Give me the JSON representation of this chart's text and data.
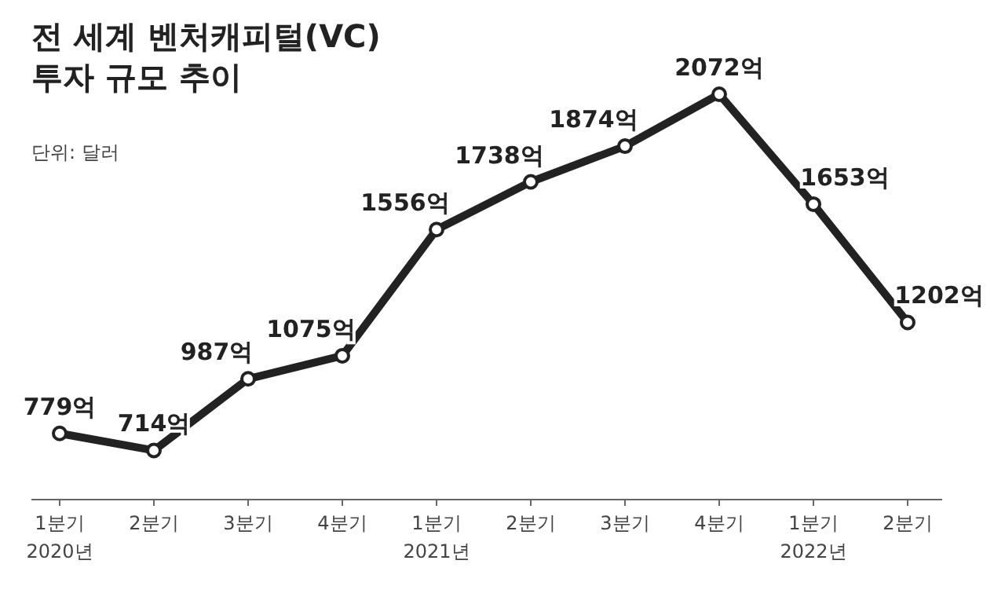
{
  "chart_data": {
    "type": "line",
    "title": "전 세계 벤처캐피털(VC)\n투자 규모 추이",
    "subtitle": "단위: 달러",
    "categories": [
      "1분기\n2020년",
      "2분기",
      "3분기",
      "4분기",
      "1분기\n2021년",
      "2분기",
      "3분기",
      "4분기",
      "1분기\n2022년",
      "2분기"
    ],
    "series": [
      {
        "color": "#222222",
        "values": [
          779,
          714,
          987,
          1075,
          1556,
          1738,
          1874,
          2072,
          1653,
          1202
        ],
        "value_labels": [
          "779억",
          "714억",
          "987억",
          "1075억",
          "1556억",
          "1738억",
          "1874억",
          "2072억",
          "1653억",
          "1202억"
        ]
      }
    ],
    "marker": "circle",
    "line_style": "solid"
  }
}
